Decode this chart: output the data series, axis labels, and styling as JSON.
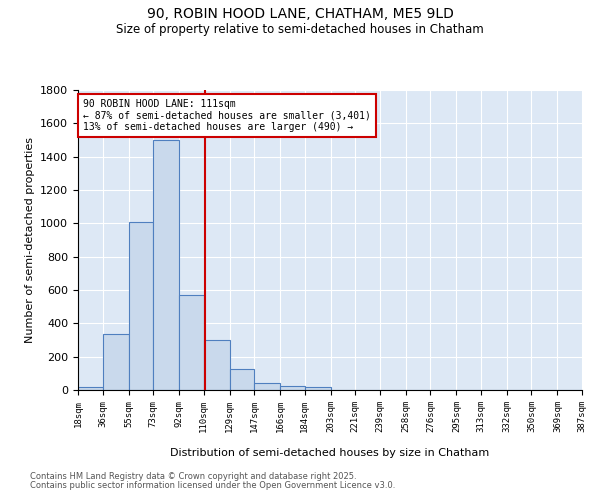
{
  "title_line1": "90, ROBIN HOOD LANE, CHATHAM, ME5 9LD",
  "title_line2": "Size of property relative to semi-detached houses in Chatham",
  "xlabel": "Distribution of semi-detached houses by size in Chatham",
  "ylabel": "Number of semi-detached properties",
  "bar_edges": [
    18,
    36,
    55,
    73,
    92,
    110,
    129,
    147,
    166,
    184,
    203,
    221,
    239,
    258,
    276,
    295,
    313,
    332,
    350,
    369,
    387
  ],
  "bar_heights": [
    20,
    335,
    1010,
    1500,
    570,
    300,
    125,
    45,
    25,
    20,
    0,
    0,
    0,
    0,
    0,
    0,
    0,
    0,
    0,
    0
  ],
  "bar_color": "#c9d9ec",
  "bar_edge_color": "#4f7fbf",
  "property_line_x": 111,
  "property_line_color": "#cc0000",
  "annotation_title": "90 ROBIN HOOD LANE: 111sqm",
  "annotation_line1": "← 87% of semi-detached houses are smaller (3,401)",
  "annotation_line2": "13% of semi-detached houses are larger (490) →",
  "annotation_box_color": "#cc0000",
  "ylim": [
    0,
    1800
  ],
  "yticks": [
    0,
    200,
    400,
    600,
    800,
    1000,
    1200,
    1400,
    1600,
    1800
  ],
  "bg_color": "#dde8f5",
  "footnote_line1": "Contains HM Land Registry data © Crown copyright and database right 2025.",
  "footnote_line2": "Contains public sector information licensed under the Open Government Licence v3.0."
}
